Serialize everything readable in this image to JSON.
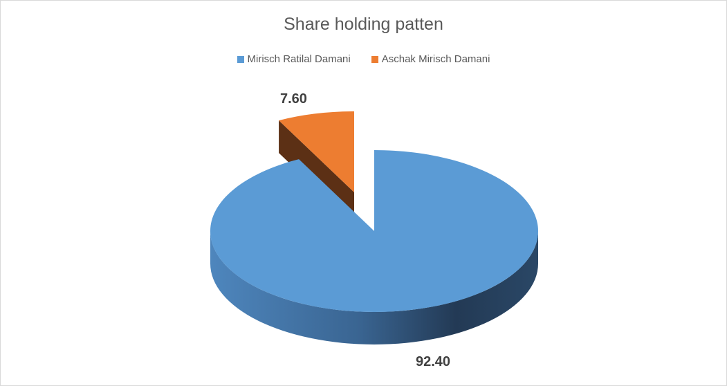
{
  "chart_data": {
    "type": "pie",
    "style": "3d-exploded",
    "title": "Share holding patten",
    "legend_position": "top",
    "slices": [
      {
        "label": "Mirisch Ratilal Damani",
        "value": 92.4,
        "value_label": "92.40",
        "color": "#5b9bd5"
      },
      {
        "label": "Aschak Mirisch Damani",
        "value": 7.6,
        "value_label": "7.60",
        "color": "#ed7d31"
      }
    ]
  }
}
